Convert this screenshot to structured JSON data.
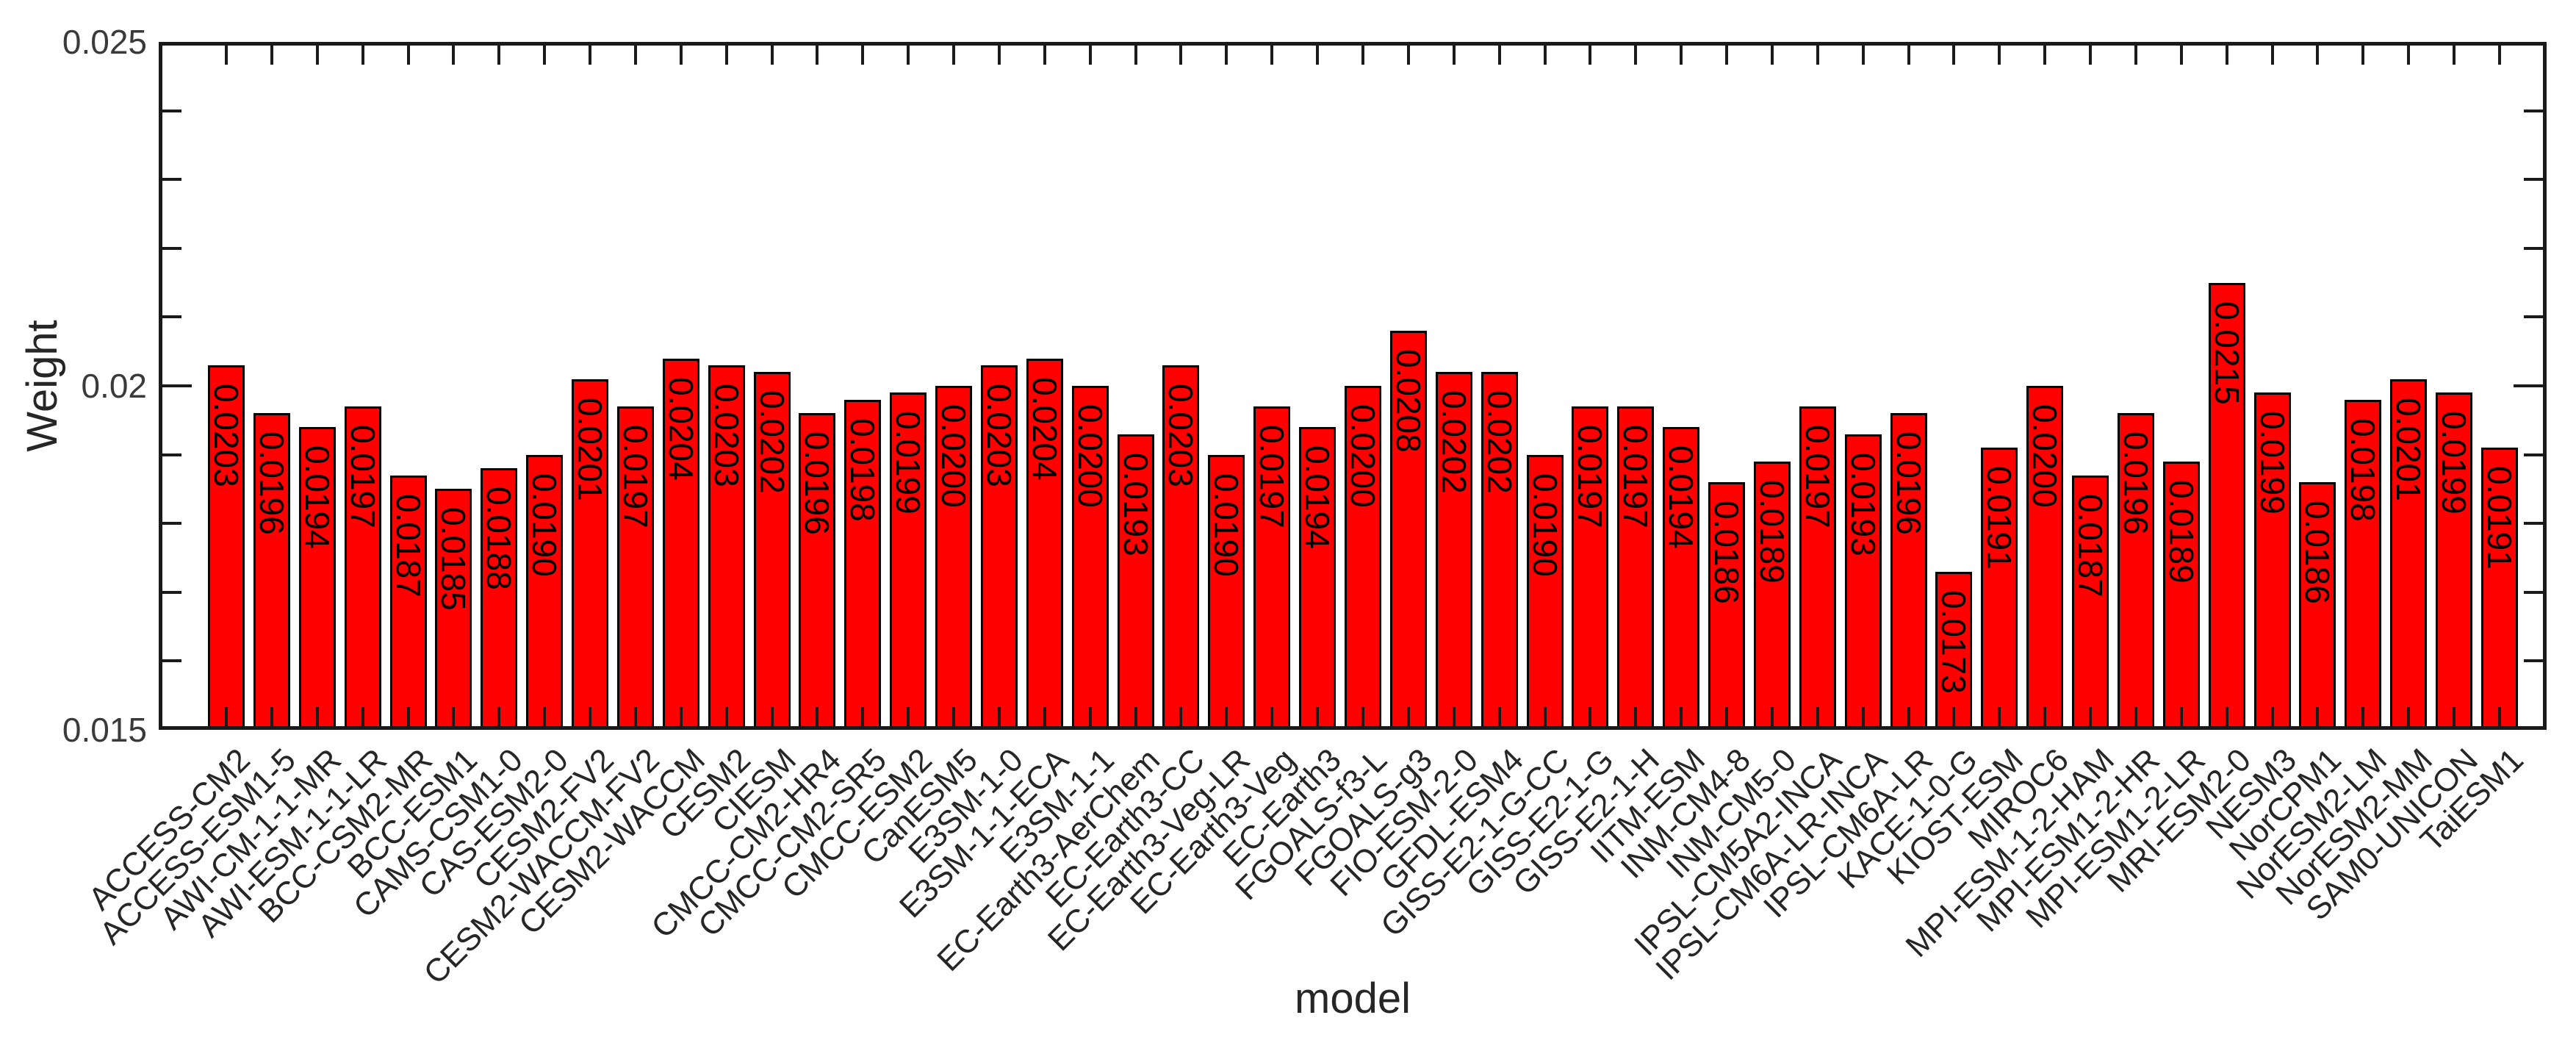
{
  "page": {
    "background": "#ffffff"
  },
  "chart_data": {
    "type": "bar",
    "title": "",
    "xlabel": "model",
    "ylabel": "Weight",
    "ylim": [
      0.015,
      0.025
    ],
    "yticks": [
      0.015,
      0.02,
      0.025
    ],
    "ytick_labels": [
      "0.015",
      "0.02",
      "0.025"
    ],
    "y_minor_tick_step": 0.001,
    "grid": false,
    "legend_position": "none",
    "bar_color": "#ff0000",
    "bar_edge_color": "#000000",
    "value_label_color": "#000000",
    "axis_color": "#1a1a1a",
    "tick_label_color": "#3a3a3a",
    "categories": [
      "ACCESS-CM2",
      "ACCESS-ESM1-5",
      "AWI-CM-1-1-MR",
      "AWI-ESM-1-1-LR",
      "BCC-CSM2-MR",
      "BCC-ESM1",
      "CAMS-CSM1-0",
      "CAS-ESM2-0",
      "CESM2-FV2",
      "CESM2-WACCM-FV2",
      "CESM2-WACCM",
      "CESM2",
      "CIESM",
      "CMCC-CM2-HR4",
      "CMCC-CM2-SR5",
      "CMCC-ESM2",
      "CanESM5",
      "E3SM-1-0",
      "E3SM-1-1-ECA",
      "E3SM-1-1",
      "EC-Earth3-AerChem",
      "EC-Earth3-CC",
      "EC-Earth3-Veg-LR",
      "EC-Earth3-Veg",
      "EC-Earth3",
      "FGOALS-f3-L",
      "FGOALS-g3",
      "FIO-ESM-2-0",
      "GFDL-ESM4",
      "GISS-E2-1-G-CC",
      "GISS-E2-1-G",
      "GISS-E2-1-H",
      "IITM-ESM",
      "INM-CM4-8",
      "INM-CM5-0",
      "IPSL-CM5A2-INCA",
      "IPSL-CM6A-LR-INCA",
      "IPSL-CM6A-LR",
      "KACE-1-0-G",
      "KIOST-ESM",
      "MIROC6",
      "MPI-ESM-1-2-HAM",
      "MPI-ESM1-2-HR",
      "MPI-ESM1-2-LR",
      "MRI-ESM2-0",
      "NESM3",
      "NorCPM1",
      "NorESM2-LM",
      "NorESM2-MM",
      "SAM0-UNICON",
      "TaiESM1"
    ],
    "values": [
      0.0203,
      0.0196,
      0.0194,
      0.0197,
      0.0187,
      0.0185,
      0.0188,
      0.019,
      0.0201,
      0.0197,
      0.0204,
      0.0203,
      0.0202,
      0.0196,
      0.0198,
      0.0199,
      0.02,
      0.0203,
      0.0204,
      0.02,
      0.0193,
      0.0203,
      0.019,
      0.0197,
      0.0194,
      0.02,
      0.0208,
      0.0202,
      0.0202,
      0.019,
      0.0197,
      0.0197,
      0.0194,
      0.0186,
      0.0189,
      0.0197,
      0.0193,
      0.0196,
      0.0173,
      0.0191,
      0.02,
      0.0187,
      0.0196,
      0.0189,
      0.0215,
      0.0199,
      0.0186,
      0.0198,
      0.0201,
      0.0199,
      0.0191
    ],
    "value_labels": [
      "0.0203",
      "0.0196",
      "0.0194",
      "0.0197",
      "0.0187",
      "0.0185",
      "0.0188",
      "0.0190",
      "0.0201",
      "0.0197",
      "0.0204",
      "0.0203",
      "0.0202",
      "0.0196",
      "0.0198",
      "0.0199",
      "0.0200",
      "0.0203",
      "0.0204",
      "0.0200",
      "0.0193",
      "0.0203",
      "0.0190",
      "0.0197",
      "0.0194",
      "0.0200",
      "0.0208",
      "0.0202",
      "0.0202",
      "0.0190",
      "0.0197",
      "0.0197",
      "0.0194",
      "0.0186",
      "0.0189",
      "0.0197",
      "0.0193",
      "0.0196",
      "0.0173",
      "0.0191",
      "0.0200",
      "0.0187",
      "0.0196",
      "0.0189",
      "0.0215",
      "0.0199",
      "0.0186",
      "0.0198",
      "0.0201",
      "0.0199",
      "0.0191"
    ]
  }
}
